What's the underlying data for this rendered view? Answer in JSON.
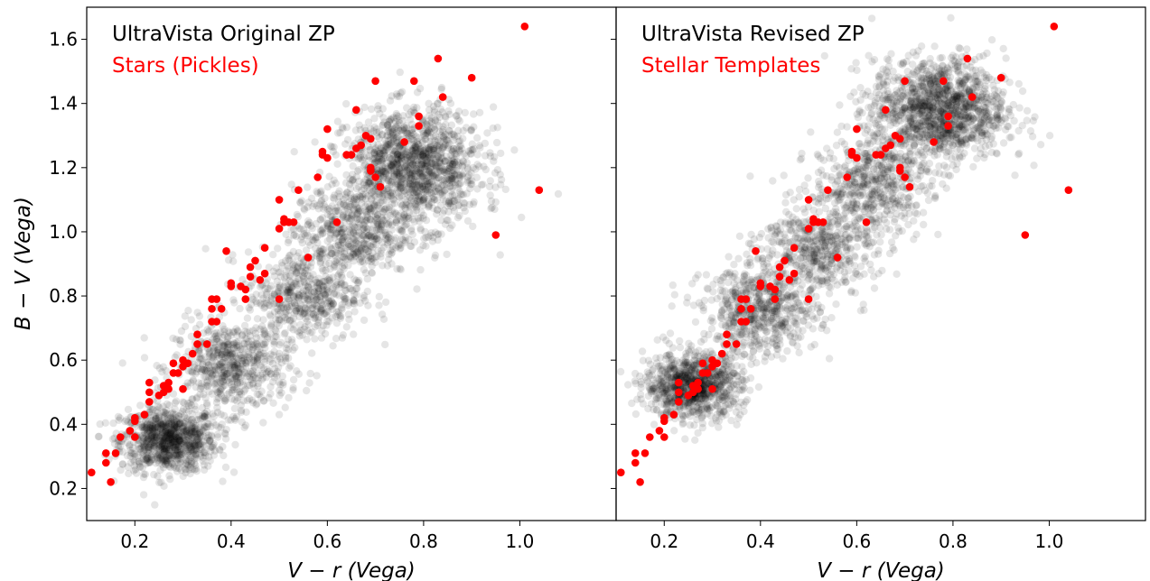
{
  "chart_data": [
    {
      "type": "scatter",
      "title": "UltraVista Original ZP",
      "subtitle": "Stars (Pickles)",
      "xlabel": "V − r (Vega)",
      "ylabel": "B − V (Vega)",
      "xlim": [
        0.1,
        1.2
      ],
      "ylim": [
        0.1,
        1.7
      ],
      "xticks": [
        "0.2",
        "0.4",
        "0.6",
        "0.8",
        "1.0"
      ],
      "yticks": [
        "0.2",
        "0.4",
        "0.6",
        "0.8",
        "1.0",
        "1.2",
        "1.4",
        "1.6"
      ],
      "grid": false,
      "series": [
        {
          "color": "#000000",
          "opacity": 0.1,
          "density_clusters": [
            {
              "x": 0.27,
              "y": 0.35,
              "n": 900,
              "sx": 0.05,
              "sy": 0.05
            },
            {
              "x": 0.4,
              "y": 0.58,
              "n": 600,
              "sx": 0.06,
              "sy": 0.07
            },
            {
              "x": 0.55,
              "y": 0.8,
              "n": 500,
              "sx": 0.06,
              "sy": 0.07
            },
            {
              "x": 0.65,
              "y": 1.0,
              "n": 500,
              "sx": 0.06,
              "sy": 0.07
            },
            {
              "x": 0.78,
              "y": 1.2,
              "n": 1300,
              "sx": 0.07,
              "sy": 0.09
            }
          ]
        },
        {
          "color": "#ff0000",
          "points": [
            [
              0.11,
              0.25
            ],
            [
              0.14,
              0.28
            ],
            [
              0.14,
              0.31
            ],
            [
              0.15,
              0.22
            ],
            [
              0.16,
              0.31
            ],
            [
              0.17,
              0.36
            ],
            [
              0.19,
              0.38
            ],
            [
              0.2,
              0.36
            ],
            [
              0.2,
              0.41
            ],
            [
              0.2,
              0.42
            ],
            [
              0.22,
              0.43
            ],
            [
              0.23,
              0.47
            ],
            [
              0.23,
              0.5
            ],
            [
              0.23,
              0.53
            ],
            [
              0.25,
              0.49
            ],
            [
              0.26,
              0.5
            ],
            [
              0.26,
              0.52
            ],
            [
              0.27,
              0.51
            ],
            [
              0.27,
              0.53
            ],
            [
              0.28,
              0.56
            ],
            [
              0.28,
              0.59
            ],
            [
              0.29,
              0.56
            ],
            [
              0.3,
              0.51
            ],
            [
              0.3,
              0.58
            ],
            [
              0.3,
              0.6
            ],
            [
              0.31,
              0.59
            ],
            [
              0.32,
              0.62
            ],
            [
              0.33,
              0.65
            ],
            [
              0.33,
              0.68
            ],
            [
              0.35,
              0.65
            ],
            [
              0.36,
              0.72
            ],
            [
              0.36,
              0.76
            ],
            [
              0.36,
              0.79
            ],
            [
              0.37,
              0.72
            ],
            [
              0.37,
              0.79
            ],
            [
              0.38,
              0.76
            ],
            [
              0.39,
              0.94
            ],
            [
              0.4,
              0.83
            ],
            [
              0.4,
              0.84
            ],
            [
              0.42,
              0.83
            ],
            [
              0.43,
              0.79
            ],
            [
              0.43,
              0.82
            ],
            [
              0.44,
              0.86
            ],
            [
              0.44,
              0.89
            ],
            [
              0.45,
              0.91
            ],
            [
              0.46,
              0.85
            ],
            [
              0.47,
              0.95
            ],
            [
              0.47,
              0.87
            ],
            [
              0.5,
              0.79
            ],
            [
              0.5,
              1.01
            ],
            [
              0.5,
              1.1
            ],
            [
              0.51,
              1.03
            ],
            [
              0.51,
              1.04
            ],
            [
              0.52,
              1.03
            ],
            [
              0.53,
              1.03
            ],
            [
              0.54,
              1.13
            ],
            [
              0.56,
              0.92
            ],
            [
              0.58,
              1.17
            ],
            [
              0.59,
              1.25
            ],
            [
              0.59,
              1.24
            ],
            [
              0.6,
              1.23
            ],
            [
              0.6,
              1.32
            ],
            [
              0.62,
              1.03
            ],
            [
              0.64,
              1.24
            ],
            [
              0.65,
              1.24
            ],
            [
              0.66,
              1.26
            ],
            [
              0.66,
              1.38
            ],
            [
              0.67,
              1.27
            ],
            [
              0.68,
              1.3
            ],
            [
              0.69,
              1.29
            ],
            [
              0.69,
              1.2
            ],
            [
              0.69,
              1.19
            ],
            [
              0.7,
              1.17
            ],
            [
              0.7,
              1.47
            ],
            [
              0.71,
              1.14
            ],
            [
              0.76,
              1.28
            ],
            [
              0.78,
              1.47
            ],
            [
              0.79,
              1.33
            ],
            [
              0.79,
              1.36
            ],
            [
              0.83,
              1.54
            ],
            [
              0.84,
              1.42
            ],
            [
              0.9,
              1.48
            ],
            [
              0.95,
              0.99
            ],
            [
              1.01,
              1.64
            ],
            [
              1.04,
              1.13
            ]
          ]
        }
      ]
    },
    {
      "type": "scatter",
      "title": "UltraVista Revised ZP",
      "subtitle": "Stellar Templates",
      "xlabel": "V − r (Vega)",
      "ylabel": "",
      "xlim": [
        0.1,
        1.2
      ],
      "ylim": [
        0.1,
        1.7
      ],
      "xticks": [
        "0.2",
        "0.4",
        "0.6",
        "0.8",
        "1.0"
      ],
      "yticks": [
        "",
        "",
        "",
        "",
        "",
        "",
        "",
        ""
      ],
      "grid": false,
      "series": [
        {
          "color": "#000000",
          "opacity": 0.1,
          "density_clusters": [
            {
              "x": 0.26,
              "y": 0.52,
              "n": 900,
              "sx": 0.05,
              "sy": 0.05
            },
            {
              "x": 0.4,
              "y": 0.75,
              "n": 600,
              "sx": 0.06,
              "sy": 0.07
            },
            {
              "x": 0.52,
              "y": 0.95,
              "n": 500,
              "sx": 0.06,
              "sy": 0.07
            },
            {
              "x": 0.63,
              "y": 1.15,
              "n": 500,
              "sx": 0.06,
              "sy": 0.07
            },
            {
              "x": 0.77,
              "y": 1.38,
              "n": 1300,
              "sx": 0.07,
              "sy": 0.08
            }
          ]
        },
        {
          "color": "#ff0000",
          "points": [
            [
              0.11,
              0.25
            ],
            [
              0.14,
              0.28
            ],
            [
              0.14,
              0.31
            ],
            [
              0.15,
              0.22
            ],
            [
              0.16,
              0.31
            ],
            [
              0.17,
              0.36
            ],
            [
              0.19,
              0.38
            ],
            [
              0.2,
              0.36
            ],
            [
              0.2,
              0.41
            ],
            [
              0.2,
              0.42
            ],
            [
              0.22,
              0.43
            ],
            [
              0.23,
              0.47
            ],
            [
              0.23,
              0.5
            ],
            [
              0.23,
              0.53
            ],
            [
              0.25,
              0.49
            ],
            [
              0.26,
              0.5
            ],
            [
              0.26,
              0.52
            ],
            [
              0.27,
              0.51
            ],
            [
              0.27,
              0.53
            ],
            [
              0.28,
              0.56
            ],
            [
              0.28,
              0.59
            ],
            [
              0.29,
              0.56
            ],
            [
              0.3,
              0.51
            ],
            [
              0.3,
              0.58
            ],
            [
              0.3,
              0.6
            ],
            [
              0.31,
              0.59
            ],
            [
              0.32,
              0.62
            ],
            [
              0.33,
              0.65
            ],
            [
              0.33,
              0.68
            ],
            [
              0.35,
              0.65
            ],
            [
              0.36,
              0.72
            ],
            [
              0.36,
              0.76
            ],
            [
              0.36,
              0.79
            ],
            [
              0.37,
              0.72
            ],
            [
              0.37,
              0.79
            ],
            [
              0.38,
              0.76
            ],
            [
              0.39,
              0.94
            ],
            [
              0.4,
              0.83
            ],
            [
              0.4,
              0.84
            ],
            [
              0.42,
              0.83
            ],
            [
              0.43,
              0.79
            ],
            [
              0.43,
              0.82
            ],
            [
              0.44,
              0.86
            ],
            [
              0.44,
              0.89
            ],
            [
              0.45,
              0.91
            ],
            [
              0.46,
              0.85
            ],
            [
              0.47,
              0.95
            ],
            [
              0.47,
              0.87
            ],
            [
              0.5,
              0.79
            ],
            [
              0.5,
              1.01
            ],
            [
              0.5,
              1.1
            ],
            [
              0.51,
              1.03
            ],
            [
              0.51,
              1.04
            ],
            [
              0.52,
              1.03
            ],
            [
              0.53,
              1.03
            ],
            [
              0.54,
              1.13
            ],
            [
              0.56,
              0.92
            ],
            [
              0.58,
              1.17
            ],
            [
              0.59,
              1.25
            ],
            [
              0.59,
              1.24
            ],
            [
              0.6,
              1.23
            ],
            [
              0.6,
              1.32
            ],
            [
              0.62,
              1.03
            ],
            [
              0.64,
              1.24
            ],
            [
              0.65,
              1.24
            ],
            [
              0.66,
              1.26
            ],
            [
              0.66,
              1.38
            ],
            [
              0.67,
              1.27
            ],
            [
              0.68,
              1.3
            ],
            [
              0.69,
              1.29
            ],
            [
              0.69,
              1.2
            ],
            [
              0.69,
              1.19
            ],
            [
              0.7,
              1.17
            ],
            [
              0.7,
              1.47
            ],
            [
              0.71,
              1.14
            ],
            [
              0.76,
              1.28
            ],
            [
              0.78,
              1.47
            ],
            [
              0.79,
              1.33
            ],
            [
              0.79,
              1.36
            ],
            [
              0.83,
              1.54
            ],
            [
              0.84,
              1.42
            ],
            [
              0.9,
              1.48
            ],
            [
              0.95,
              0.99
            ],
            [
              1.01,
              1.64
            ],
            [
              1.04,
              1.13
            ]
          ]
        }
      ]
    }
  ]
}
